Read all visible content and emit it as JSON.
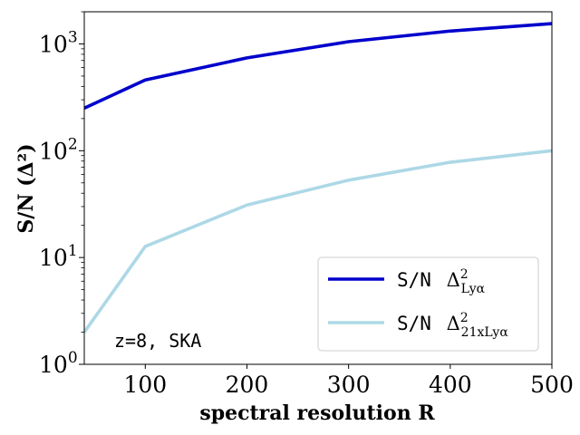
{
  "chart_data": {
    "type": "line",
    "title": "",
    "xlabel": "spectral resolution R",
    "ylabel": "S/N (Δ²)",
    "xlim": [
      40,
      500
    ],
    "ylim": [
      1,
      2000
    ],
    "yscale": "log",
    "x": [
      40,
      100,
      200,
      300,
      400,
      500
    ],
    "series": [
      {
        "name": "S/N Δ²Lyα",
        "legend_prefix": "S/N",
        "legend_symbol": "Δ",
        "legend_sup": "2",
        "legend_sub": "Lyα",
        "color": "#0000cc",
        "values": [
          250,
          460,
          740,
          1050,
          1320,
          1550
        ]
      },
      {
        "name": "S/N Δ²21xLyα",
        "legend_prefix": "S/N",
        "legend_symbol": "Δ",
        "legend_sup": "2",
        "legend_sub": "21xLyα",
        "color": "#add8e6",
        "values": [
          2,
          12.7,
          31,
          53,
          78,
          100
        ]
      }
    ],
    "x_ticks": [
      100,
      200,
      300,
      400,
      500
    ],
    "x_tick_labels": [
      "100",
      "200",
      "300",
      "400",
      "500"
    ],
    "y_ticks": [
      1,
      10,
      100,
      1000
    ],
    "y_tick_base": "10",
    "y_tick_exponents": [
      "0",
      "1",
      "2",
      "3"
    ],
    "annotation": "z=8, SKA",
    "legend_position": "lower-right",
    "grid": false
  }
}
